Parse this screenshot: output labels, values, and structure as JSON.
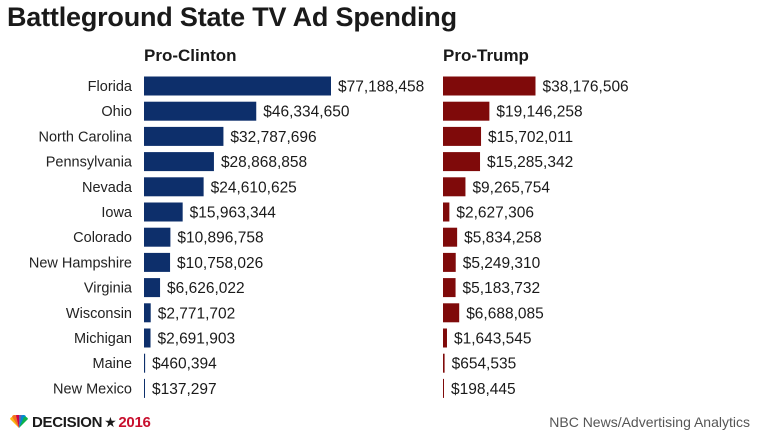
{
  "title": "Battleground State TV Ad Spending",
  "footer": {
    "brand_word": "DECISION",
    "brand_star": "★",
    "brand_year": "2016",
    "source": "NBC News/Advertising Analytics"
  },
  "colors": {
    "clinton": "#0d2f6b",
    "trump": "#7f0a0a"
  },
  "chart_data": {
    "type": "bar",
    "orientation": "horizontal",
    "title": "Battleground State TV Ad Spending",
    "categories": [
      "Florida",
      "Ohio",
      "North Carolina",
      "Pennsylvania",
      "Nevada",
      "Iowa",
      "Colorado",
      "New Hampshire",
      "Virginia",
      "Wisconsin",
      "Michigan",
      "Maine",
      "New Mexico"
    ],
    "series": [
      {
        "name": "Pro-Clinton",
        "values": [
          77188458,
          46334650,
          32787696,
          28868858,
          24610625,
          15963344,
          10896758,
          10758026,
          6626022,
          2771702,
          2691903,
          460394,
          137297
        ],
        "labels": [
          "$77,188,458",
          "$46,334,650",
          "$32,787,696",
          "$28,868,858",
          "$24,610,625",
          "$15,963,344",
          "$10,896,758",
          "$10,758,026",
          "$6,626,022",
          "$2,771,702",
          "$2,691,903",
          "$460,394",
          "$137,297"
        ]
      },
      {
        "name": "Pro-Trump",
        "values": [
          38176506,
          19146258,
          15702011,
          15285342,
          9265754,
          2627306,
          5834258,
          5249310,
          5183732,
          6688085,
          1643545,
          654535,
          198445
        ],
        "labels": [
          "$38,176,506",
          "$19,146,258",
          "$15,702,011",
          "$15,285,342",
          "$9,265,754",
          "$2,627,306",
          "$5,834,258",
          "$5,249,310",
          "$5,183,732",
          "$6,688,085",
          "$1,643,545",
          "$654,535",
          "$198,445"
        ]
      }
    ],
    "xlim": [
      0,
      77188458
    ],
    "grid": false,
    "legend": "none"
  }
}
